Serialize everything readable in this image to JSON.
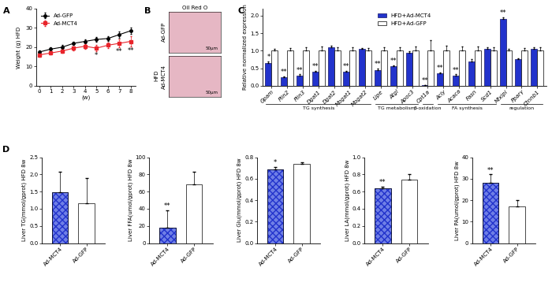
{
  "chart_data": [
    {
      "label": "A",
      "type": "line",
      "ylabel": "Weight (g) HFD",
      "xlabel": "(w)",
      "x": [
        0,
        1,
        2,
        3,
        4,
        5,
        6,
        7,
        8
      ],
      "xlim": [
        -0.3,
        8.4
      ],
      "xticks": [
        0,
        1,
        2,
        3,
        4,
        5,
        6,
        7,
        8
      ],
      "ylim": [
        0,
        40
      ],
      "yticks": [
        0,
        10,
        20,
        30,
        40
      ],
      "legend": "upper left",
      "series": [
        {
          "name": "Ad-GFP",
          "color": "#000000",
          "marker": "circle",
          "values": [
            17.5,
            19,
            20,
            22,
            23,
            24,
            24.5,
            26.5,
            28.5
          ],
          "errors": [
            0.8,
            0.8,
            1,
            1,
            1,
            1.2,
            1.2,
            1.5,
            1.8
          ]
        },
        {
          "name": "Ad-MCT4",
          "color": "#e8242b",
          "marker": "square",
          "values": [
            16,
            17,
            18,
            19.5,
            20.5,
            19.5,
            21,
            22,
            23
          ],
          "errors": [
            0.8,
            0.8,
            1,
            1,
            1.2,
            1.5,
            1.5,
            2,
            2.5
          ]
        }
      ],
      "annotations": [
        {
          "x": 5,
          "series": "Ad-MCT4",
          "text": "*"
        },
        {
          "x": 7,
          "series": "Ad-MCT4",
          "text": "**"
        },
        {
          "x": 8,
          "series": "Ad-MCT4",
          "text": "**"
        }
      ]
    },
    {
      "label": "C",
      "type": "bar",
      "ylabel": "Relative normalized expression",
      "categories": [
        "Gpam",
        "Plin2",
        "Plin3",
        "Dgat1",
        "Dgat2",
        "Mogat1",
        "Mogat2",
        "Lipe",
        "Atgl",
        "Apoc3",
        "Cpt1a",
        "Acly",
        "Acaca",
        "Fasn",
        "Scd1",
        "Mlxipl",
        "Pparγ",
        "Ctnnb1"
      ],
      "ylim": [
        0,
        2.2
      ],
      "yticks": [
        {
          "value": 0,
          "label": "0.0"
        },
        0.5,
        {
          "value": 1,
          "label": "1.0"
        },
        1.5,
        {
          "value": 2,
          "label": "2.0"
        }
      ],
      "legend": "upper center",
      "series": [
        {
          "name": "HFD+Ad-MCT4",
          "color": "#2233cc",
          "values": [
            0.65,
            0.25,
            0.3,
            0.4,
            1.1,
            0.4,
            1.05,
            0.45,
            0.55,
            0.95,
            0.02,
            0.35,
            0.3,
            0.7,
            1.05,
            1.9,
            0.75,
            1.05
          ],
          "errors": [
            0.05,
            0.02,
            0.03,
            0.03,
            0.05,
            0.03,
            0.03,
            0.05,
            0.04,
            0.04,
            0.01,
            0.03,
            0.03,
            0.05,
            0.04,
            0.06,
            0.04,
            0.05
          ]
        },
        {
          "name": "HFD+Ad-GFP",
          "color": "#ffffff",
          "values": [
            1,
            1,
            1,
            1,
            1,
            1,
            1,
            1,
            1,
            1,
            1,
            1,
            1,
            1,
            1,
            1,
            1,
            1
          ],
          "errors": [
            0.05,
            0.08,
            0.1,
            0.12,
            0.1,
            0.1,
            0.08,
            0.1,
            0.1,
            0.12,
            0.3,
            0.15,
            0.12,
            0.12,
            0.1,
            0.05,
            0.08,
            0.1
          ]
        }
      ],
      "annotations": [
        {
          "category": "Gpam",
          "series": "HFD+Ad-MCT4",
          "text": "*"
        },
        {
          "category": "Plin2",
          "series": "HFD+Ad-MCT4",
          "text": "**"
        },
        {
          "category": "Plin3",
          "series": "HFD+Ad-MCT4",
          "text": "**"
        },
        {
          "category": "Dgat1",
          "series": "HFD+Ad-MCT4",
          "text": "**"
        },
        {
          "category": "Mogat1",
          "series": "HFD+Ad-MCT4",
          "text": "**"
        },
        {
          "category": "Lipe",
          "series": "HFD+Ad-MCT4",
          "text": "**"
        },
        {
          "category": "Atgl",
          "series": "HFD+Ad-MCT4",
          "text": "**"
        },
        {
          "category": "Cpt1a",
          "series": "HFD+Ad-MCT4",
          "text": "**"
        },
        {
          "category": "Acly",
          "series": "HFD+Ad-MCT4",
          "text": "**"
        },
        {
          "category": "Acaca",
          "series": "HFD+Ad-MCT4",
          "text": "**"
        },
        {
          "category": "Mlxipl",
          "series": "HFD+Ad-MCT4",
          "text": "**"
        }
      ],
      "groups": [
        {
          "label": "TG synthesis",
          "categories": [
            "Gpam",
            "Plin2",
            "Plin3",
            "Dgat1",
            "Dgat2",
            "Mogat1",
            "Mogat2"
          ]
        },
        {
          "label": "TG metabolism",
          "categories": [
            "Lipe",
            "Atgl",
            "Apoc3"
          ]
        },
        {
          "label": "β-oxidation",
          "categories": [
            "Cpt1a"
          ]
        },
        {
          "label": "FA synthesis",
          "categories": [
            "Acly",
            "Acaca",
            "Fasn",
            "Scd1"
          ]
        },
        {
          "label": "regulation",
          "categories": [
            "Mlxipl",
            "Pparγ",
            "Ctnnb1"
          ]
        }
      ]
    },
    {
      "label": "D",
      "type": "bar",
      "ylabel": "Liver TG(mmol/gprot) HFD 8w",
      "categories": [
        "Ad-MCT4",
        "Ad-GFP"
      ],
      "values": [
        1.48,
        1.15
      ],
      "errors": [
        0.6,
        0.75
      ],
      "colors": [
        "#2233cc",
        "#ffffff"
      ],
      "ylim": [
        0,
        2.5
      ],
      "yticks": [
        {
          "value": 0,
          "label": "0.0"
        },
        0.5,
        {
          "value": 1,
          "label": "1.0"
        },
        1.5,
        {
          "value": 2,
          "label": "2.0"
        },
        2.5
      ]
    },
    {
      "type": "bar",
      "ylabel": "Liver FFA(umol/gprot) HFD 8w",
      "categories": [
        "Ad-MCT4",
        "Ad-GFP"
      ],
      "values": [
        18,
        68
      ],
      "errors": [
        20,
        15
      ],
      "colors": [
        "#2233cc",
        "#ffffff"
      ],
      "ylim": [
        0,
        100
      ],
      "yticks": [
        0,
        20,
        40,
        60,
        80,
        100
      ],
      "annotations": [
        {
          "category": "Ad-MCT4",
          "text": "**"
        }
      ]
    },
    {
      "type": "bar",
      "ylabel": "Liver Glu(mmol/gprot) HFD 8w",
      "categories": [
        "Ad-MCT4",
        "Ad-GFP"
      ],
      "values": [
        0.69,
        0.74
      ],
      "errors": [
        0.02,
        0.01
      ],
      "colors": [
        "#2233cc",
        "#ffffff"
      ],
      "ylim": [
        0,
        0.8
      ],
      "yticks": [
        {
          "value": 0,
          "label": "0.0"
        },
        0.2,
        0.4,
        0.6,
        0.8
      ],
      "annotations": [
        {
          "category": "Ad-MCT4",
          "text": "*"
        }
      ]
    },
    {
      "type": "bar",
      "ylabel": "Liver LA(mmol/gprot) HFD 8w",
      "categories": [
        "Ad-MCT4",
        "Ad-GFP"
      ],
      "values": [
        0.64,
        0.74
      ],
      "errors": [
        0.02,
        0.06
      ],
      "colors": [
        "#2233cc",
        "#ffffff"
      ],
      "ylim": [
        0,
        1.0
      ],
      "yticks": [
        {
          "value": 0,
          "label": "0.0"
        },
        0.2,
        0.4,
        0.6,
        0.8,
        {
          "value": 1,
          "label": "1.0"
        }
      ],
      "annotations": [
        {
          "category": "Ad-MCT4",
          "text": "**"
        }
      ]
    },
    {
      "type": "bar",
      "ylabel": "Liver PA(umol/gprot) HFD 8w",
      "categories": [
        "Ad-MCT4",
        "Ad-GFP"
      ],
      "values": [
        28,
        17
      ],
      "errors": [
        4,
        3
      ],
      "colors": [
        "#2233cc",
        "#ffffff"
      ],
      "ylim": [
        0,
        40
      ],
      "yticks": [
        0,
        10,
        20,
        30,
        40
      ],
      "annotations": [
        {
          "category": "Ad-MCT4",
          "text": "**"
        }
      ]
    }
  ],
  "image_panel": {
    "label": "B",
    "title": "Oil Red O",
    "group": "HFD",
    "rows": [
      "Ad-GFP",
      "Ad-MCT4"
    ],
    "scale_bar": "50μm"
  }
}
